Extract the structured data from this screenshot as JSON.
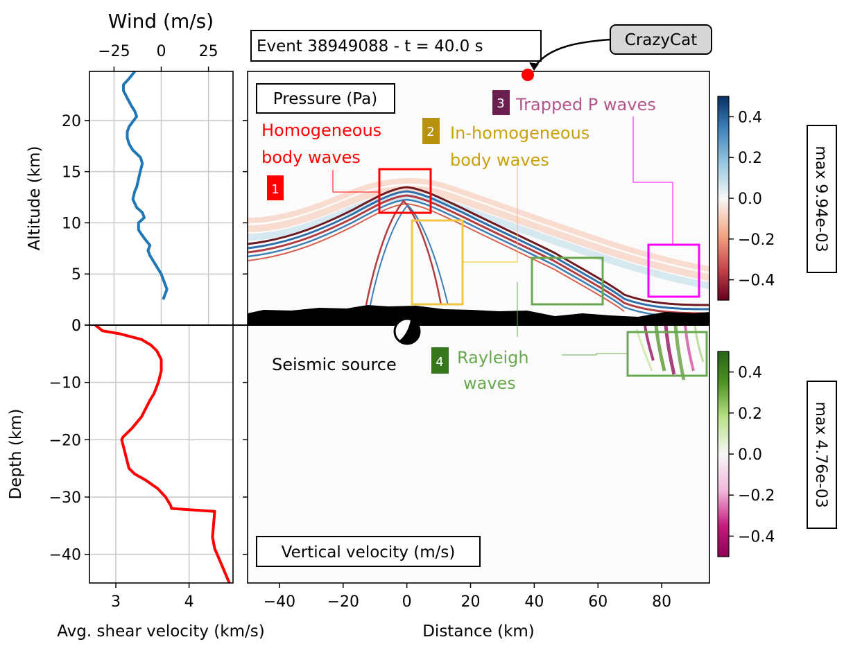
{
  "header": {
    "event_label": "Event 38949088 - t = 40.0 s",
    "callout_label": "CrazyCat"
  },
  "wind_panel": {
    "title": "Wind (m/s)",
    "xticks": [
      -25,
      0,
      25
    ],
    "xlim": [
      -38,
      38
    ]
  },
  "altitude_axis": {
    "label": "Altitude (km)",
    "ticks": [
      0,
      5,
      10,
      15,
      20
    ],
    "ylim": [
      0,
      24.8
    ]
  },
  "depth_axis": {
    "label": "Depth (km)",
    "ticks": [
      0,
      -10,
      -20,
      -30,
      -40
    ],
    "ylim": [
      -45,
      0
    ]
  },
  "shear_axis": {
    "label": "Avg. shear velocity (km/s)",
    "ticks": [
      3,
      4
    ],
    "xlim": [
      2.64,
      4.6
    ]
  },
  "distance_axis": {
    "label": "Distance (km)",
    "ticks": [
      -40,
      -20,
      0,
      20,
      40,
      60,
      80
    ],
    "xlim": [
      -50,
      95
    ]
  },
  "pressure_panel": {
    "label": "Pressure (Pa)",
    "colorbar_ticks": [
      "0.4",
      "0.2",
      "0.0",
      "−0.2",
      "−0.4"
    ],
    "colorbar_max": "max 9.94e-03"
  },
  "velocity_panel": {
    "label": "Vertical velocity (m/s)",
    "colorbar_ticks": [
      "0.4",
      "0.2",
      "0.0",
      "−0.2",
      "−0.4"
    ],
    "colorbar_max": "max 4.76e-03"
  },
  "annotations": {
    "box1": {
      "number": "1",
      "line1": "Homogeneous",
      "line2": "body waves",
      "color": "#ff0000"
    },
    "box2": {
      "number": "2",
      "line1": "In-homogeneous",
      "line2": "body waves",
      "color": "#c8a10c"
    },
    "box3": {
      "number": "3",
      "line1": "Trapped P waves",
      "color": "#b2578b"
    },
    "box4": {
      "number": "4",
      "line1": "Rayleigh",
      "line2": "waves",
      "color": "#6aa84f"
    },
    "source": "Seismic source"
  },
  "chart_data": [
    {
      "type": "line",
      "panel": "wind profile",
      "xlabel": "Wind (m/s)",
      "ylabel": "Altitude (km)",
      "series": [
        {
          "color": "#1f77b4",
          "x": [
            1,
            3,
            1,
            0,
            -2,
            -4,
            -6,
            -7,
            -6,
            -9,
            -12,
            -12,
            -9,
            -10,
            -13,
            -15,
            -14,
            -13,
            -12,
            -11,
            -10,
            -11,
            -15,
            -17,
            -18,
            -18,
            -17,
            -15,
            -13,
            -14,
            -16,
            -18,
            -20,
            -20,
            -17,
            -14
          ],
          "y": [
            2.5,
            3.5,
            4.5,
            5.0,
            5.6,
            6.2,
            6.8,
            7.3,
            7.8,
            8.5,
            9.3,
            10.0,
            10.5,
            11.0,
            11.5,
            12.3,
            13.1,
            13.5,
            14.3,
            15.1,
            15.8,
            16.4,
            17.1,
            17.7,
            18.3,
            18.9,
            19.4,
            19.9,
            20.4,
            20.9,
            21.5,
            22.2,
            22.9,
            23.5,
            24.1,
            24.8
          ]
        }
      ],
      "xlim": [
        -38,
        38
      ],
      "ylim": [
        0,
        24.8
      ]
    },
    {
      "type": "line",
      "panel": "shear velocity profile",
      "xlabel": "Avg. shear velocity (km/s)",
      "ylabel": "Depth (km)",
      "series": [
        {
          "color": "#ff0000",
          "x": [
            2.72,
            2.82,
            3.05,
            3.35,
            3.48,
            3.56,
            3.62,
            3.62,
            3.58,
            3.52,
            3.47,
            3.35,
            3.22,
            3.1,
            3.08,
            3.12,
            3.18,
            3.26,
            3.4,
            3.57,
            3.68,
            3.75,
            3.76,
            4.35,
            4.32,
            4.35,
            4.45,
            4.55
          ],
          "y": [
            0,
            -1,
            -1.5,
            -2.5,
            -3.5,
            -4.5,
            -6,
            -8,
            -10,
            -12,
            -13,
            -16,
            -18,
            -19.5,
            -20,
            -22,
            -25,
            -26,
            -27,
            -28.5,
            -30,
            -31.5,
            -32,
            -32.5,
            -37,
            -39,
            -42,
            -45
          ]
        }
      ],
      "xlim": [
        2.64,
        4.6
      ],
      "ylim": [
        -45,
        0
      ]
    },
    {
      "type": "heatmap",
      "panel": "pressure field (upper right)",
      "xlabel": "",
      "ylabel": "",
      "xlim": [
        -50,
        95
      ],
      "colorscale": "RdBu (red negative, blue positive)",
      "colorbar_range": [
        -0.5,
        0.5
      ],
      "colorbar_ticks": [
        0.4,
        0.2,
        0.0,
        -0.2,
        -0.4
      ]
    },
    {
      "type": "heatmap",
      "panel": "vertical velocity field (lower right)",
      "xlabel": "Distance (km)",
      "ylabel": "",
      "xlim": [
        -50,
        95
      ],
      "colorscale": "PiYG (magenta negative, green positive)",
      "colorbar_range": [
        -0.5,
        0.5
      ],
      "colorbar_ticks": [
        0.4,
        0.2,
        0.0,
        -0.2,
        -0.4
      ]
    }
  ]
}
